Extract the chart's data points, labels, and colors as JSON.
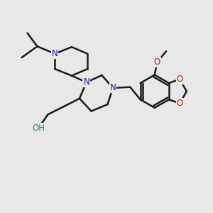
{
  "background_color": "#e8e8e8",
  "bond_color": "#1a1a1a",
  "nitrogen_color": "#1414cc",
  "oxygen_color": "#cc2200",
  "hydroxyl_color": "#3a7a7a",
  "bond_width": 1.8,
  "font_size_atom": 8.5,
  "fig_width": 3.0,
  "fig_height": 3.0,
  "xlim": [
    0,
    10
  ],
  "ylim": [
    0,
    10
  ]
}
